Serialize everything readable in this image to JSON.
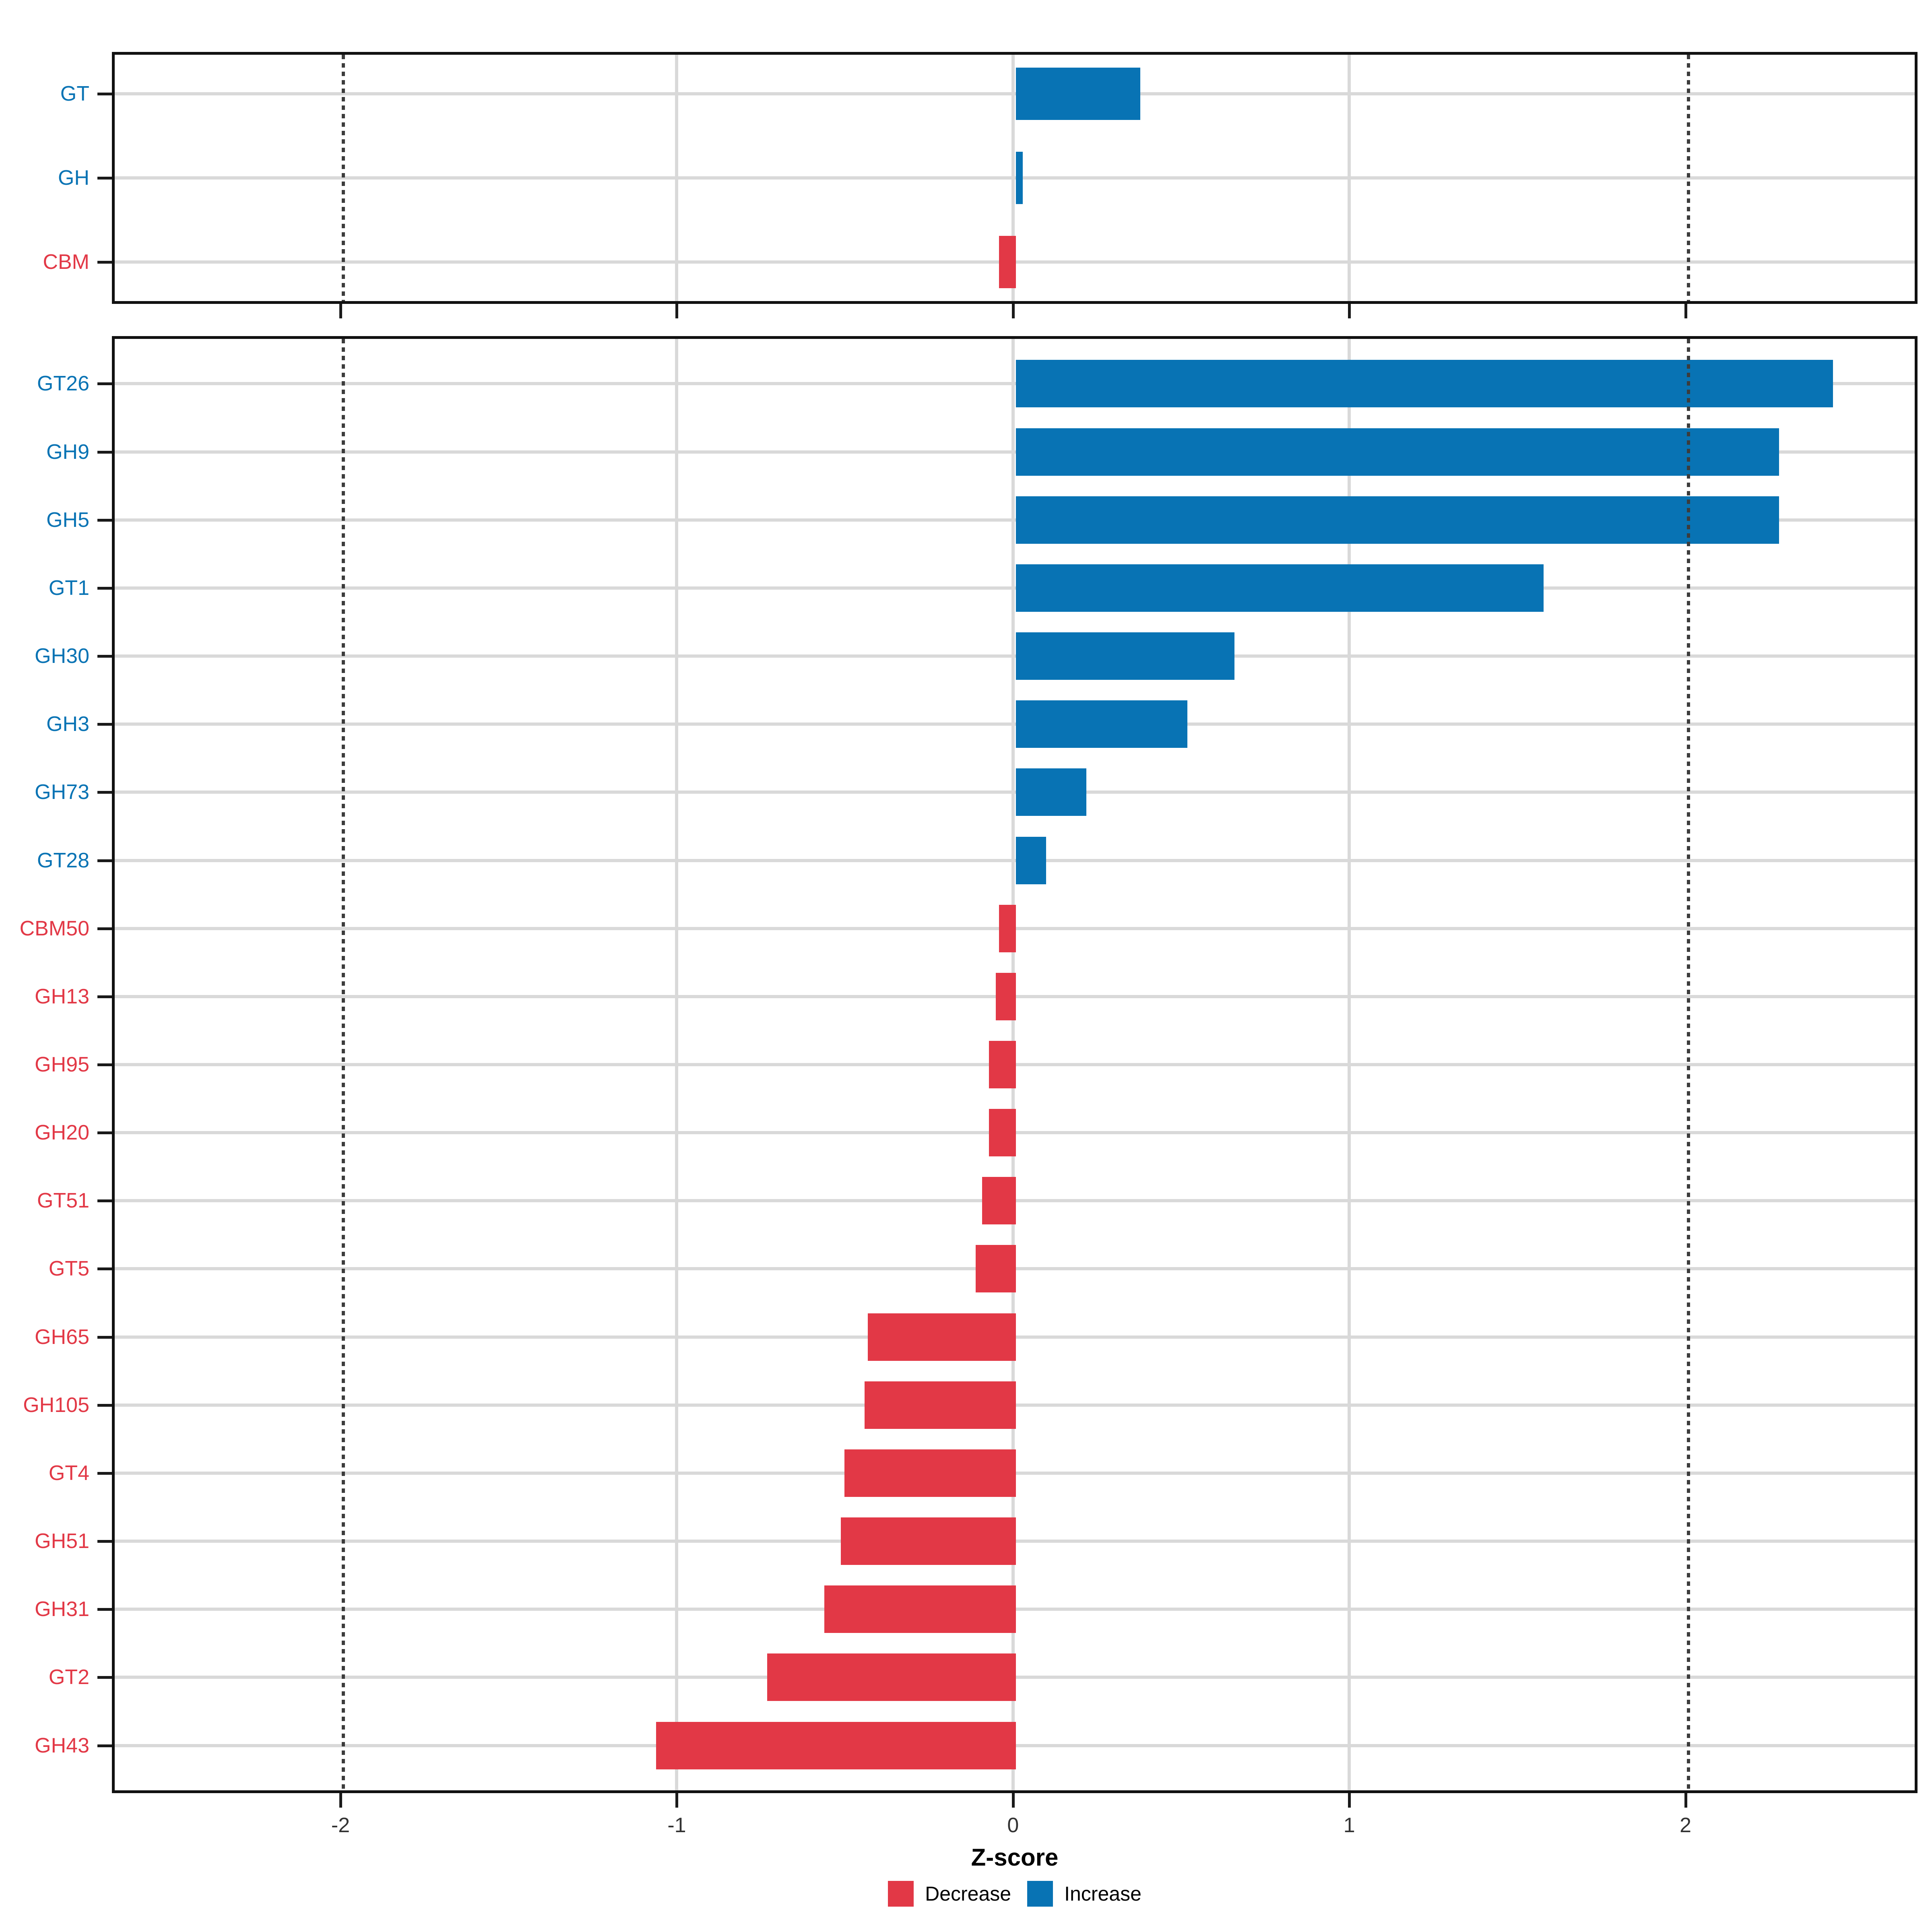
{
  "chart_data": {
    "type": "bar",
    "orientation": "horizontal",
    "title": "",
    "xlabel": "Z-score",
    "ylabel": "",
    "xlim": [
      -2.68,
      2.69
    ],
    "x_ticks": [
      -2,
      -1,
      0,
      1,
      2
    ],
    "x_tick_labels": [
      "-2",
      "-1",
      "0",
      "1",
      "2"
    ],
    "grid_vlines": [
      -1,
      0,
      1
    ],
    "dashed_vlines": [
      -2,
      2
    ],
    "grid": "on",
    "legend_position": "bottom",
    "panels": [
      {
        "id": "summary",
        "categories": [
          "GT",
          "GH",
          "CBM"
        ],
        "values": [
          0.37,
          0.02,
          -0.05
        ]
      },
      {
        "id": "families",
        "categories": [
          "GT26",
          "GH9",
          "GH5",
          "GT1",
          "GH30",
          "GH3",
          "GH73",
          "GT28",
          "CBM50",
          "GH13",
          "GH95",
          "GH20",
          "GT51",
          "GT5",
          "GH65",
          "GH105",
          "GT4",
          "GH51",
          "GH31",
          "GT2",
          "GH43"
        ],
        "values": [
          2.43,
          2.27,
          2.27,
          1.57,
          0.65,
          0.51,
          0.21,
          0.09,
          -0.05,
          -0.06,
          -0.08,
          -0.08,
          -0.1,
          -0.12,
          -0.44,
          -0.45,
          -0.51,
          -0.52,
          -0.57,
          -0.74,
          -1.07
        ]
      }
    ],
    "series_colors": {
      "increase": "#0873B4",
      "decrease": "#E23846"
    },
    "label_colors": {
      "increase": "#0873B4",
      "decrease": "#E23846"
    },
    "legend": [
      {
        "label": "Decrease",
        "color": "#E23846"
      },
      {
        "label": "Increase",
        "color": "#0873B4"
      }
    ]
  }
}
